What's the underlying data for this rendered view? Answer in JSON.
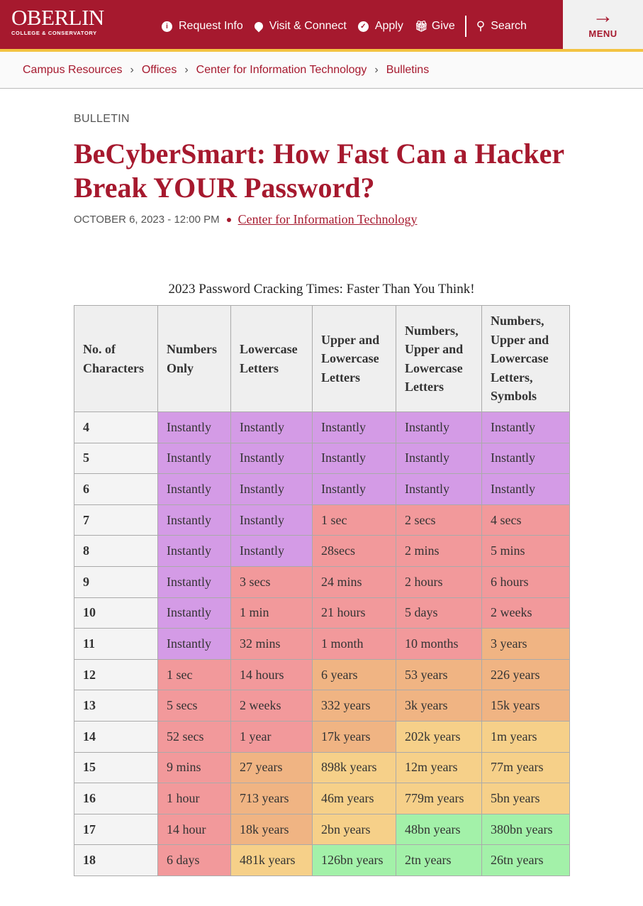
{
  "header": {
    "logo_main": "OBERLIN",
    "logo_sub": "COLLEGE & CONSERVATORY",
    "nav": [
      {
        "label": "Request Info",
        "icon": "info-icon"
      },
      {
        "label": "Visit & Connect",
        "icon": "location-pin-icon"
      },
      {
        "label": "Apply",
        "icon": "check-circle-icon"
      },
      {
        "label": "Give",
        "icon": "gift-icon"
      }
    ],
    "search_label": "Search",
    "menu_label": "MENU",
    "colors": {
      "brand": "#a6192e",
      "accent": "#f3c342"
    }
  },
  "breadcrumb": [
    "Campus Resources",
    "Offices",
    "Center for Information Technology",
    "Bulletins"
  ],
  "article": {
    "kicker": "BULLETIN",
    "title": "BeCyberSmart: How Fast Can a Hacker Break YOUR Password?",
    "date": "OCTOBER 6, 2023 - 12:00 PM",
    "author_link": "Center for Information Technology"
  },
  "table": {
    "caption": "2023 Password Cracking Times: Faster Than You Think!",
    "headers": [
      "No. of Characters",
      "Numbers Only",
      "Lowercase Letters",
      "Upper and Lowercase Letters",
      "Numbers, Upper and Lowercase Letters",
      "Numbers, Upper and Lowercase Letters, Symbols"
    ],
    "color_key": {
      "P": "#d49be6",
      "R": "#f2999b",
      "O": "#f0b483",
      "Y": "#f6d089",
      "G": "#a3f1a9"
    },
    "rows": [
      {
        "n": "4",
        "cells": [
          "Instantly",
          "Instantly",
          "Instantly",
          "Instantly",
          "Instantly"
        ],
        "colors": [
          "P",
          "P",
          "P",
          "P",
          "P"
        ]
      },
      {
        "n": "5",
        "cells": [
          "Instantly",
          "Instantly",
          "Instantly",
          "Instantly",
          "Instantly"
        ],
        "colors": [
          "P",
          "P",
          "P",
          "P",
          "P"
        ]
      },
      {
        "n": "6",
        "cells": [
          "Instantly",
          "Instantly",
          "Instantly",
          "Instantly",
          "Instantly"
        ],
        "colors": [
          "P",
          "P",
          "P",
          "P",
          "P"
        ]
      },
      {
        "n": "7",
        "cells": [
          "Instantly",
          "Instantly",
          "1 sec",
          "2 secs",
          "4 secs"
        ],
        "colors": [
          "P",
          "P",
          "R",
          "R",
          "R"
        ]
      },
      {
        "n": "8",
        "cells": [
          "Instantly",
          "Instantly",
          "28secs",
          "2 mins",
          "5 mins"
        ],
        "colors": [
          "P",
          "P",
          "R",
          "R",
          "R"
        ]
      },
      {
        "n": "9",
        "cells": [
          "Instantly",
          "3 secs",
          "24 mins",
          "2 hours",
          "6 hours"
        ],
        "colors": [
          "P",
          "R",
          "R",
          "R",
          "R"
        ]
      },
      {
        "n": "10",
        "cells": [
          "Instantly",
          "1 min",
          "21 hours",
          "5 days",
          "2 weeks"
        ],
        "colors": [
          "P",
          "R",
          "R",
          "R",
          "R"
        ]
      },
      {
        "n": "11",
        "cells": [
          "Instantly",
          "32 mins",
          "1 month",
          "10 months",
          "3 years"
        ],
        "colors": [
          "P",
          "R",
          "R",
          "R",
          "O"
        ]
      },
      {
        "n": "12",
        "cells": [
          "1 sec",
          "14 hours",
          "6 years",
          "53 years",
          "226 years"
        ],
        "colors": [
          "R",
          "R",
          "O",
          "O",
          "O"
        ]
      },
      {
        "n": "13",
        "cells": [
          "5 secs",
          "2 weeks",
          "332 years",
          "3k years",
          "15k years"
        ],
        "colors": [
          "R",
          "R",
          "O",
          "O",
          "O"
        ]
      },
      {
        "n": "14",
        "cells": [
          "52 secs",
          "1 year",
          "17k years",
          "202k years",
          "1m years"
        ],
        "colors": [
          "R",
          "R",
          "O",
          "Y",
          "Y"
        ]
      },
      {
        "n": "15",
        "cells": [
          "9 mins",
          "27 years",
          "898k years",
          "12m years",
          "77m years"
        ],
        "colors": [
          "R",
          "O",
          "Y",
          "Y",
          "Y"
        ]
      },
      {
        "n": "16",
        "cells": [
          "1 hour",
          "713 years",
          "46m years",
          "779m years",
          "5bn years"
        ],
        "colors": [
          "R",
          "O",
          "Y",
          "Y",
          "Y"
        ]
      },
      {
        "n": "17",
        "cells": [
          "14 hour",
          "18k years",
          "2bn years",
          "48bn years",
          "380bn years"
        ],
        "colors": [
          "R",
          "O",
          "Y",
          "G",
          "G"
        ]
      },
      {
        "n": "18",
        "cells": [
          "6 days",
          "481k years",
          "126bn years",
          "2tn years",
          "26tn years"
        ],
        "colors": [
          "R",
          "Y",
          "G",
          "G",
          "G"
        ]
      }
    ]
  }
}
